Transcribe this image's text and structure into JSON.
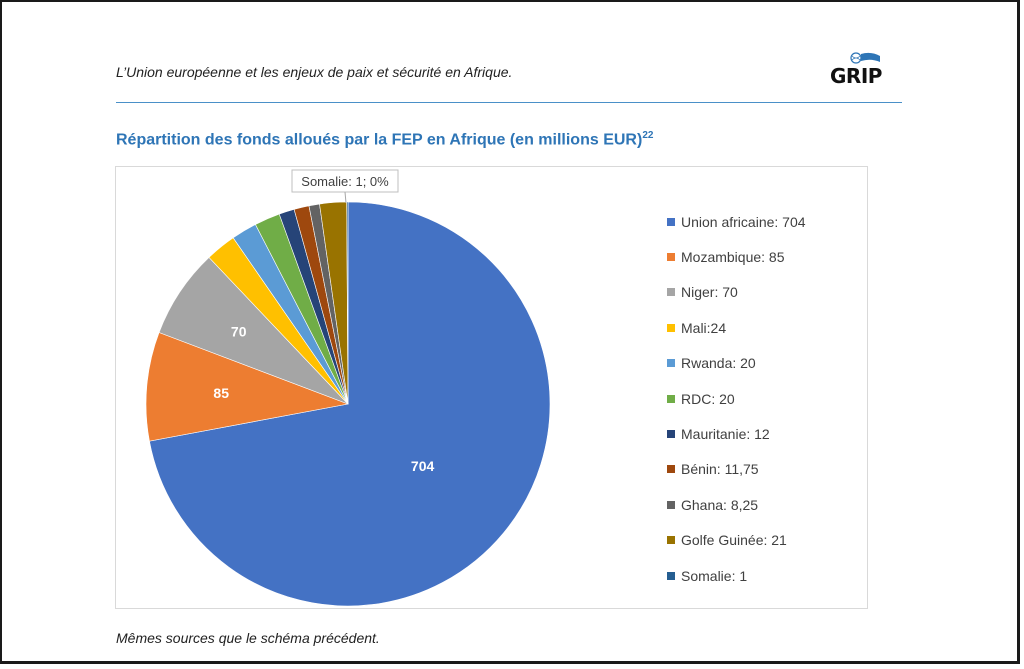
{
  "header": {
    "text": "L’Union européenne et les enjeux de paix et sécurité en Afrique."
  },
  "logo": {
    "text": "GRIP"
  },
  "chart": {
    "title": "Répartition des fonds alloués par la FEP en Afrique (en millions EUR)",
    "footnote_ref": "22"
  },
  "footer": {
    "text": "Mêmes sources que le schéma précédent."
  },
  "chart_data": {
    "type": "pie",
    "title": "Répartition des fonds alloués par la FEP en Afrique (en millions EUR)",
    "legend_position": "right",
    "slices": [
      {
        "name": "Union africaine",
        "value": 704,
        "legend": "Union africaine: 704",
        "label": "704",
        "color": "#4472c4"
      },
      {
        "name": "Mozambique",
        "value": 85,
        "legend": "Mozambique: 85",
        "label": "85",
        "color": "#ed7d31"
      },
      {
        "name": "Niger",
        "value": 70,
        "legend": "Niger: 70",
        "label": "70",
        "color": "#a5a5a5"
      },
      {
        "name": "Mali",
        "value": 24,
        "legend": "Mali:24",
        "label": "",
        "color": "#ffc000"
      },
      {
        "name": "Rwanda",
        "value": 20,
        "legend": "Rwanda: 20",
        "label": "",
        "color": "#5b9bd5"
      },
      {
        "name": "RDC",
        "value": 20,
        "legend": "RDC: 20",
        "label": "",
        "color": "#70ad47"
      },
      {
        "name": "Mauritanie",
        "value": 12,
        "legend": "Mauritanie: 12",
        "label": "",
        "color": "#264478"
      },
      {
        "name": "Bénin",
        "value": 11.75,
        "legend": "Bénin: 11,75",
        "label": "",
        "color": "#9e480e"
      },
      {
        "name": "Ghana",
        "value": 8.25,
        "legend": "Ghana: 8,25",
        "label": "",
        "color": "#636363"
      },
      {
        "name": "Golfe Guinée",
        "value": 21,
        "legend": "Golfe Guinée: 21",
        "label": "",
        "color": "#997300"
      },
      {
        "name": "Somalie",
        "value": 1,
        "legend": "Somalie: 1",
        "label": "Somalie: 1; 0%",
        "color": "#255e91"
      }
    ]
  }
}
